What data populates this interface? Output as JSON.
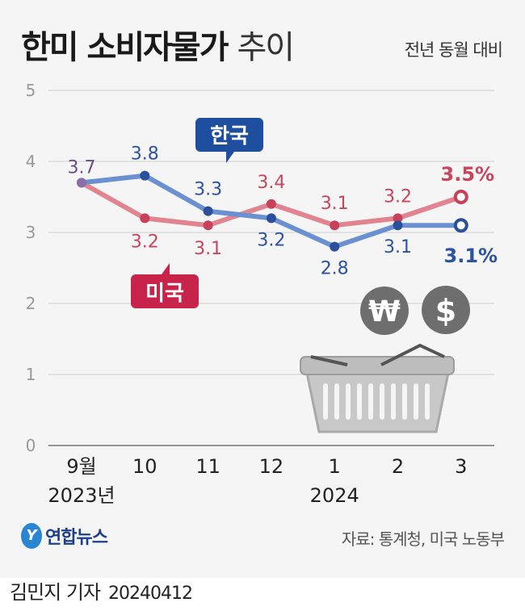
{
  "header": {
    "title_bold": "한미 소비자물가",
    "title_light": "추이",
    "subtitle": "전년 동월 대비"
  },
  "chart_data": {
    "type": "line",
    "categories": [
      "9월",
      "10",
      "11",
      "12",
      "1",
      "2",
      "3"
    ],
    "year_labels": [
      {
        "label": "2023년",
        "index": 0
      },
      {
        "label": "2024",
        "index": 4
      }
    ],
    "ylim": [
      0,
      5
    ],
    "yticks": [
      0,
      1,
      2,
      3,
      4,
      5
    ],
    "grid": true,
    "series": [
      {
        "name": "한국",
        "values": [
          3.7,
          3.8,
          3.3,
          3.2,
          2.8,
          3.1,
          3.1
        ],
        "labels": [
          "3.7",
          "3.8",
          "3.3",
          "3.2",
          "2.8",
          "3.1",
          "3.1%"
        ],
        "line_color": "#6b90d2",
        "point_color": "#2b4f9b",
        "label_color": "#2b52a3"
      },
      {
        "name": "미국",
        "values": [
          3.7,
          3.2,
          3.1,
          3.4,
          3.1,
          3.2,
          3.5
        ],
        "labels": [
          "3.7",
          "3.2",
          "3.1",
          "3.4",
          "3.1",
          "3.2",
          "3.5%"
        ],
        "line_color": "#e2848f",
        "point_color": "#c8415a",
        "label_color": "#c9455e"
      }
    ],
    "shared_label_color": "#6a4e8a"
  },
  "icons": [
    "shopping-basket-icon",
    "won-coin-icon",
    "dollar-coin-icon"
  ],
  "icon_glyphs": {
    "won": "₩",
    "dollar": "$"
  },
  "footer": {
    "logo_mark": "Y",
    "logo_text": "연합뉴스",
    "source": "자료: 통계청, 미국 노동부",
    "author": "김민지 기자",
    "date": "20240412"
  }
}
